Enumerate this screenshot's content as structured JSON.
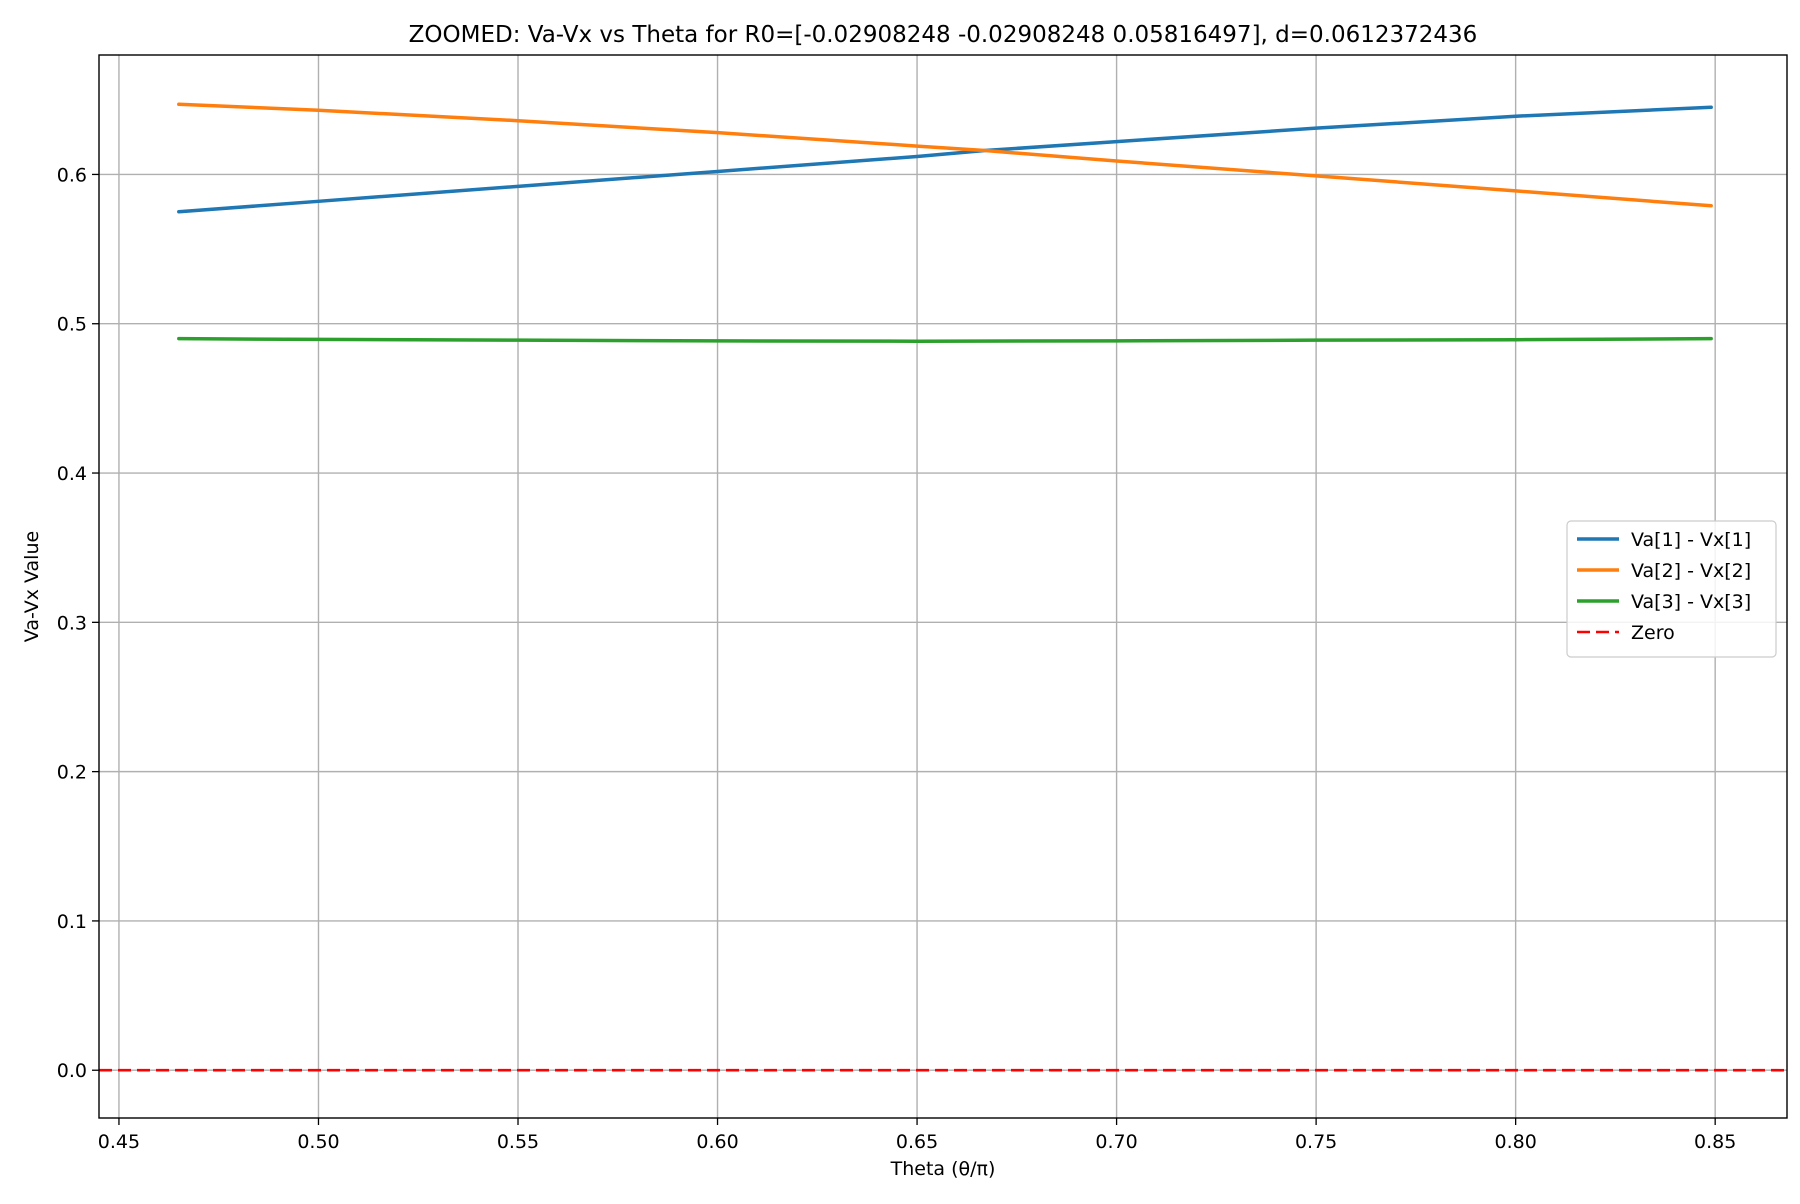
{
  "chart_data": {
    "type": "line",
    "title": "ZOOMED: Va-Vx vs Theta for R0=[-0.02908248 -0.02908248  0.05816497], d=0.0612372436",
    "xlabel": "Theta (θ/π)",
    "ylabel": "Va-Vx Value",
    "xlim": [
      0.445,
      0.868
    ],
    "ylim": [
      -0.032,
      0.68
    ],
    "xticks": [
      0.45,
      0.5,
      0.55,
      0.6,
      0.65,
      0.7,
      0.75,
      0.8,
      0.85
    ],
    "xtick_labels": [
      "0.45",
      "0.50",
      "0.55",
      "0.60",
      "0.65",
      "0.70",
      "0.75",
      "0.80",
      "0.85"
    ],
    "yticks": [
      0.0,
      0.1,
      0.2,
      0.3,
      0.4,
      0.5,
      0.6
    ],
    "ytick_labels": [
      "0.0",
      "0.1",
      "0.2",
      "0.3",
      "0.4",
      "0.5",
      "0.6"
    ],
    "grid": true,
    "legend_position": "center-right",
    "series": [
      {
        "name": "Va[1] - Vx[1]",
        "color": "#1f77b4",
        "style": "solid",
        "x": [
          0.465,
          0.5,
          0.55,
          0.6,
          0.65,
          0.667,
          0.7,
          0.75,
          0.8,
          0.849
        ],
        "y": [
          0.575,
          0.582,
          0.592,
          0.602,
          0.612,
          0.616,
          0.622,
          0.631,
          0.639,
          0.645
        ]
      },
      {
        "name": "Va[2] - Vx[2]",
        "color": "#ff7f0e",
        "style": "solid",
        "x": [
          0.465,
          0.5,
          0.55,
          0.6,
          0.65,
          0.667,
          0.7,
          0.75,
          0.8,
          0.849
        ],
        "y": [
          0.647,
          0.643,
          0.636,
          0.628,
          0.619,
          0.616,
          0.609,
          0.599,
          0.589,
          0.579
        ]
      },
      {
        "name": "Va[3] - Vx[3]",
        "color": "#2ca02c",
        "style": "solid",
        "x": [
          0.465,
          0.5,
          0.55,
          0.6,
          0.65,
          0.7,
          0.75,
          0.8,
          0.849
        ],
        "y": [
          0.49,
          0.4895,
          0.489,
          0.4885,
          0.4883,
          0.4885,
          0.489,
          0.4893,
          0.49
        ]
      },
      {
        "name": "Zero",
        "color": "#ff0000",
        "style": "dashed",
        "x": [
          0.445,
          0.868
        ],
        "y": [
          0.0,
          0.0
        ]
      }
    ]
  }
}
